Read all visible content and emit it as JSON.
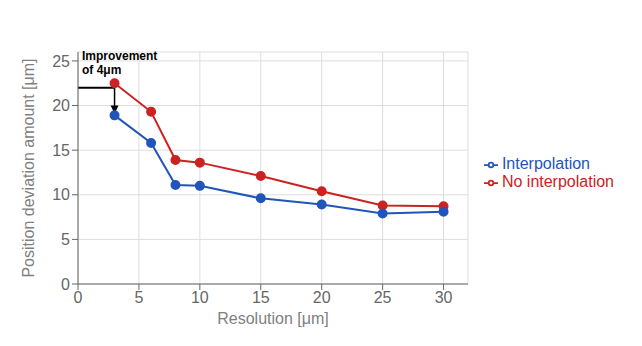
{
  "chart_data": {
    "type": "line",
    "x": [
      3,
      6,
      8,
      10,
      15,
      20,
      25,
      30
    ],
    "series": [
      {
        "name": "No interpolation",
        "color": "#cc2222",
        "marker": "o",
        "values": [
          22.5,
          19.3,
          13.9,
          13.6,
          12.1,
          10.4,
          8.8,
          8.7
        ]
      },
      {
        "name": "Interpolation",
        "color": "#2255bb",
        "marker": "o",
        "values": [
          18.9,
          15.8,
          11.1,
          11.0,
          9.6,
          8.9,
          7.9,
          8.1
        ]
      }
    ],
    "xlabel": "Resolution  [μm]",
    "ylabel": "Position deviation amount  [μm]",
    "xlim": [
      0,
      32
    ],
    "ylim": [
      0,
      26
    ],
    "xticks": [
      0,
      5,
      10,
      15,
      20,
      25,
      30
    ],
    "yticks": [
      0,
      5,
      10,
      15,
      20,
      25
    ],
    "grid": true,
    "legend": "right",
    "annotations": [
      {
        "text": "Improvement\nof 4μm",
        "xy": [
          3,
          19.1
        ],
        "xytext": [
          0,
          22
        ]
      }
    ]
  }
}
